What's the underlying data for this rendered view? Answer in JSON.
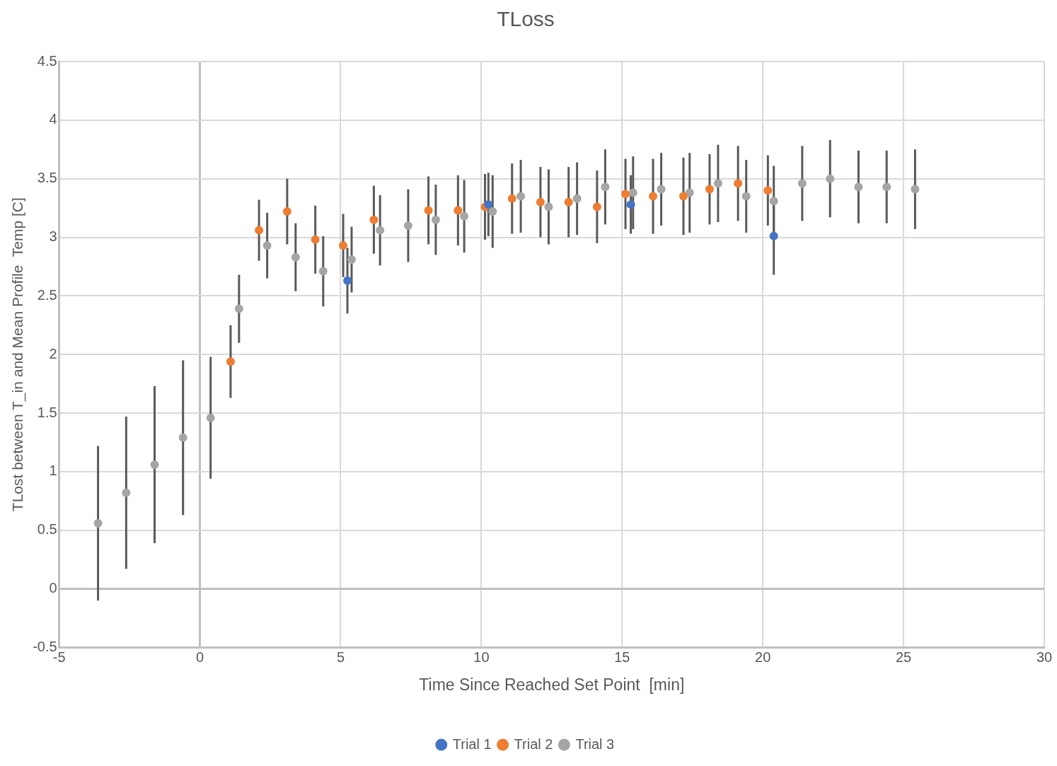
{
  "chart_data": {
    "type": "scatter",
    "title": "TLoss",
    "xlabel": "Time Since Reached Set Point  [min]",
    "ylabel": "TLost between T_in and Mean Profile  Temp [C]",
    "xlim": [
      -5,
      30
    ],
    "xticks": [
      -5,
      0,
      5,
      10,
      15,
      20,
      25,
      30
    ],
    "ylim": [
      -0.5,
      4.5
    ],
    "yticks": [
      -0.5,
      0,
      0.5,
      1,
      1.5,
      2,
      2.5,
      3,
      3.5,
      4,
      4.5
    ],
    "grid": true,
    "legend": "bottom",
    "marker": "circle",
    "series": [
      {
        "name": "Trial 1",
        "color": "#4472c4",
        "x": [
          5.24,
          10.25,
          15.31,
          20.39
        ],
        "values": [
          2.63,
          3.28,
          3.28,
          3.01
        ],
        "errors": [
          0.28,
          0.27,
          0.25,
          0.33
        ]
      },
      {
        "name": "Trial 2",
        "color": "#ed7d31",
        "x": [
          1.09,
          2.1,
          3.1,
          4.1,
          5.09,
          6.18,
          8.12,
          9.17,
          10.13,
          11.09,
          12.1,
          13.1,
          14.11,
          15.12,
          16.1,
          17.18,
          18.11,
          19.12,
          20.18
        ],
        "values": [
          1.94,
          3.06,
          3.22,
          2.98,
          2.93,
          3.15,
          3.23,
          3.23,
          3.26,
          3.33,
          3.3,
          3.3,
          3.26,
          3.37,
          3.35,
          3.35,
          3.41,
          3.46,
          3.4
        ],
        "errors": [
          0.31,
          0.26,
          0.28,
          0.29,
          0.27,
          0.29,
          0.29,
          0.3,
          0.28,
          0.3,
          0.3,
          0.3,
          0.31,
          0.3,
          0.32,
          0.33,
          0.3,
          0.32,
          0.3
        ]
      },
      {
        "name": "Trial 3",
        "color": "#a5a5a5",
        "x": [
          -3.62,
          -2.62,
          -1.61,
          -0.6,
          0.38,
          1.39,
          2.39,
          3.4,
          4.38,
          5.39,
          6.4,
          7.4,
          8.38,
          9.39,
          10.4,
          11.4,
          12.39,
          13.4,
          14.4,
          15.39,
          16.39,
          17.4,
          18.41,
          19.41,
          20.39,
          21.4,
          22.39,
          23.4,
          24.4,
          25.41
        ],
        "values": [
          0.56,
          0.82,
          1.06,
          1.29,
          1.46,
          2.39,
          2.93,
          2.83,
          2.71,
          2.81,
          3.06,
          3.1,
          3.15,
          3.18,
          3.22,
          3.35,
          3.26,
          3.33,
          3.43,
          3.38,
          3.41,
          3.38,
          3.46,
          3.35,
          3.31,
          3.46,
          3.5,
          3.43,
          3.43,
          3.41
        ],
        "errors": [
          0.66,
          0.65,
          0.67,
          0.66,
          0.52,
          0.29,
          0.28,
          0.29,
          0.3,
          0.28,
          0.3,
          0.31,
          0.3,
          0.31,
          0.31,
          0.31,
          0.32,
          0.31,
          0.32,
          0.31,
          0.31,
          0.34,
          0.33,
          0.31,
          0.3,
          0.32,
          0.33,
          0.31,
          0.31,
          0.34
        ]
      }
    ]
  }
}
